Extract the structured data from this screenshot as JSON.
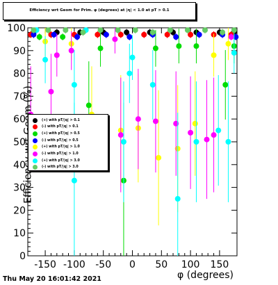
{
  "chart_data": {
    "type": "scatter",
    "title": "Efficiency wrt Geom for Prim. φ (degrees) at |η| < 1.0 at pT > 0.1",
    "xlabel": "φ (degrees)",
    "ylabel": "Efficiency wrt Geom (%)",
    "xlim": [
      -180,
      180
    ],
    "ylim": [
      0,
      100
    ],
    "x_ticks": [
      -150,
      -100,
      -50,
      0,
      50,
      100,
      150
    ],
    "y_ticks": [
      0,
      10,
      20,
      30,
      40,
      50,
      60,
      70,
      80,
      90,
      100
    ],
    "grid": false,
    "legend_position": "middle-left",
    "timestamp": "Thu May 20 16:01:42 2021",
    "series": [
      {
        "name": "(+) with pT/|q| > 0.1",
        "color": "#000000",
        "points": [
          [
            -170,
            98
          ],
          [
            -130,
            98
          ],
          [
            -90,
            98
          ],
          [
            -50,
            98
          ],
          [
            -10,
            98
          ],
          [
            30,
            98
          ],
          [
            70,
            98
          ],
          [
            110,
            98
          ],
          [
            150,
            98
          ],
          [
            175,
            98
          ]
        ]
      },
      {
        "name": "(-) with pT/|q| > 0.1",
        "color": "#ff0000",
        "points": [
          [
            -175,
            97
          ],
          [
            -140,
            97
          ],
          [
            -100,
            97
          ],
          [
            -60,
            97
          ],
          [
            -20,
            97
          ],
          [
            20,
            97
          ],
          [
            60,
            97
          ],
          [
            100,
            97
          ],
          [
            140,
            97
          ],
          [
            170,
            97
          ]
        ]
      },
      {
        "name": "(+) with pT/|q| > 0.5",
        "color": "#00dd00",
        "points": [
          [
            -160,
            96
          ],
          [
            -120,
            96
          ],
          [
            -75,
            66
          ],
          [
            -55,
            91
          ],
          [
            -15,
            33
          ],
          [
            40,
            91
          ],
          [
            80,
            92
          ],
          [
            110,
            92
          ],
          [
            160,
            75
          ],
          [
            175,
            92
          ]
        ]
      },
      {
        "name": "(-) with pT/|q| > 0.5",
        "color": "#0000ff",
        "points": [
          [
            -170,
            97
          ],
          [
            -135,
            97
          ],
          [
            -95,
            96
          ],
          [
            -45,
            97
          ],
          [
            -5,
            96
          ],
          [
            35,
            97
          ],
          [
            75,
            96
          ],
          [
            115,
            97
          ],
          [
            155,
            97
          ],
          [
            178,
            96
          ]
        ]
      },
      {
        "name": "(+) with pT/|q| > 1.0",
        "color": "#ffff00",
        "points": [
          [
            -150,
            94
          ],
          [
            -105,
            93
          ],
          [
            -70,
            62
          ],
          [
            -20,
            55
          ],
          [
            10,
            56
          ],
          [
            45,
            43
          ],
          [
            78,
            47
          ],
          [
            108,
            58
          ],
          [
            140,
            88
          ],
          [
            165,
            93
          ]
        ]
      },
      {
        "name": "(-) with pT/|q| > 1.0",
        "color": "#ff00ff",
        "points": [
          [
            -175,
            62
          ],
          [
            -140,
            72
          ],
          [
            -130,
            88
          ],
          [
            -105,
            90
          ],
          [
            -30,
            95
          ],
          [
            -20,
            53
          ],
          [
            10,
            60
          ],
          [
            40,
            59
          ],
          [
            75,
            58
          ],
          [
            100,
            54
          ],
          [
            128,
            51
          ],
          [
            140,
            53
          ],
          [
            170,
            96
          ]
        ]
      },
      {
        "name": "(+) with pT/|q| > 3.0",
        "color": "#00ffff",
        "points": [
          [
            -165,
            99
          ],
          [
            -150,
            86
          ],
          [
            -100,
            75
          ],
          [
            -100,
            33
          ],
          [
            -80,
            99
          ],
          [
            -15,
            50
          ],
          [
            -5,
            80
          ],
          [
            0,
            87
          ],
          [
            35,
            75
          ],
          [
            78,
            25
          ],
          [
            110,
            50
          ],
          [
            148,
            55
          ],
          [
            165,
            50
          ],
          [
            175,
            89
          ]
        ]
      },
      {
        "name": "(-) with pT/|q| > 3.0",
        "color": "#66cc66",
        "points": [
          [
            -170,
            99
          ],
          [
            -145,
            99
          ],
          [
            -115,
            99
          ],
          [
            -85,
            98
          ],
          [
            -55,
            99
          ],
          [
            -25,
            99
          ],
          [
            5,
            99
          ],
          [
            35,
            98
          ],
          [
            65,
            99
          ],
          [
            95,
            99
          ],
          [
            125,
            99
          ],
          [
            155,
            98
          ],
          [
            175,
            99
          ]
        ]
      }
    ]
  }
}
